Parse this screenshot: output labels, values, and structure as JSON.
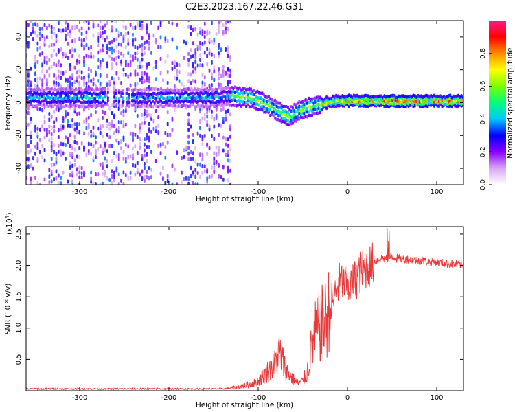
{
  "chart_data": [
    {
      "type": "heatmap",
      "title": "C2E3.2023.167.22.46.G31",
      "xlabel": "Height of straight line (km)",
      "ylabel": "Frequency (Hz)",
      "xlim": [
        -360,
        130
      ],
      "ylim": [
        -50,
        50
      ],
      "x_ticks": [
        -300,
        -200,
        -100,
        0,
        100
      ],
      "y_ticks": [
        -40,
        -20,
        0,
        20,
        40
      ],
      "colorbar": {
        "label": "Normalized spectral amplitude",
        "range": [
          0,
          1
        ],
        "ticks": [
          "0.0",
          "0.2",
          "0.4",
          "0.6",
          "0.8"
        ],
        "colors": [
          "#ffffff",
          "#d8a6f5",
          "#8a00ff",
          "#0000ff",
          "#00c8ff",
          "#00ff7a",
          "#7aff00",
          "#ffff00",
          "#ff8c00",
          "#ff0000",
          "#ff1a8c"
        ]
      },
      "ridge": {
        "height": [
          -360,
          -300,
          -250,
          -200,
          -150,
          -130,
          -110,
          -90,
          -75,
          -65,
          -55,
          -45,
          -30,
          -15,
          0,
          30,
          60,
          90,
          130
        ],
        "frequency": [
          3,
          3,
          3,
          3,
          3,
          4,
          3,
          -1,
          -6,
          -9,
          -5,
          -3,
          -1,
          1,
          1,
          1,
          1,
          1,
          1
        ]
      }
    },
    {
      "type": "line",
      "xlabel": "Height of straight line (km)",
      "ylabel": "SNR (10 * v/v)",
      "y_scale_label": "(x10",
      "y_scale_exp": "4",
      "xlim": [
        -360,
        130
      ],
      "ylim": [
        0,
        2.62
      ],
      "x_ticks": [
        -300,
        -200,
        -100,
        0,
        100
      ],
      "y_ticks": [
        "0.5",
        "1.0",
        "1.5",
        "2.0",
        "2.5"
      ],
      "line_color": "#e83a3a",
      "series": [
        {
          "name": "SNR",
          "x": [
            -360,
            -300,
            -200,
            -140,
            -125,
            -110,
            -100,
            -90,
            -82,
            -76,
            -72,
            -68,
            -62,
            -56,
            -50,
            -45,
            -40,
            -35,
            -30,
            -25,
            -20,
            -15,
            -10,
            -5,
            0,
            5,
            10,
            15,
            20,
            25,
            30,
            35,
            40,
            45,
            50,
            55,
            60,
            70,
            80,
            90,
            100,
            110,
            120,
            130
          ],
          "y": [
            0.03,
            0.03,
            0.03,
            0.03,
            0.05,
            0.1,
            0.15,
            0.3,
            0.4,
            0.62,
            0.45,
            0.3,
            0.2,
            0.12,
            0.15,
            0.3,
            0.7,
            0.95,
            1.05,
            1.1,
            1.3,
            1.5,
            1.7,
            1.75,
            1.65,
            1.7,
            1.8,
            1.9,
            1.95,
            2.0,
            2.05,
            2.1,
            2.12,
            2.1,
            2.15,
            2.12,
            2.1,
            2.1,
            2.08,
            2.07,
            2.05,
            2.03,
            2.02,
            2.0
          ]
        }
      ]
    }
  ]
}
